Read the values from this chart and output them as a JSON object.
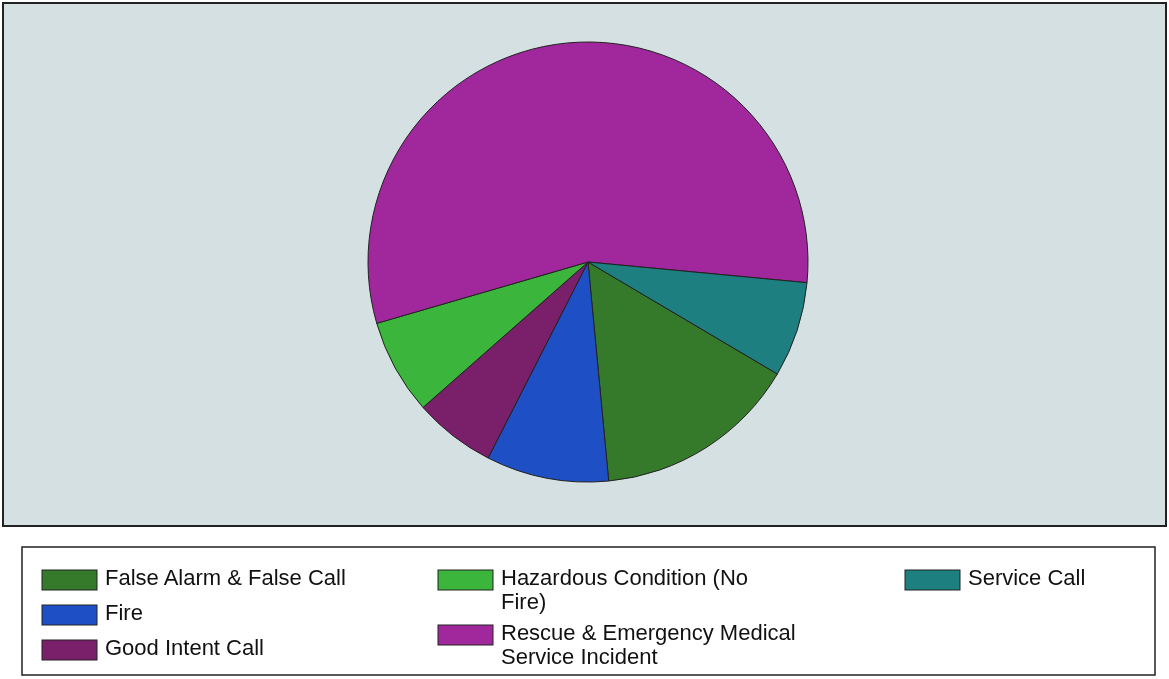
{
  "chart_data": {
    "type": "pie",
    "categories": [
      "False Alarm & False Call",
      "Fire",
      "Good Intent Call",
      "Hazardous Condition (No Fire)",
      "Rescue & Emergency Medical Service Incident",
      "Service Call"
    ],
    "values": [
      15,
      9,
      6,
      7,
      56,
      7
    ],
    "colors": [
      "#357a2a",
      "#1f4fc4",
      "#7a1f6a",
      "#3bb53b",
      "#a0289c",
      "#1d7f80"
    ],
    "legend": "bottom"
  }
}
